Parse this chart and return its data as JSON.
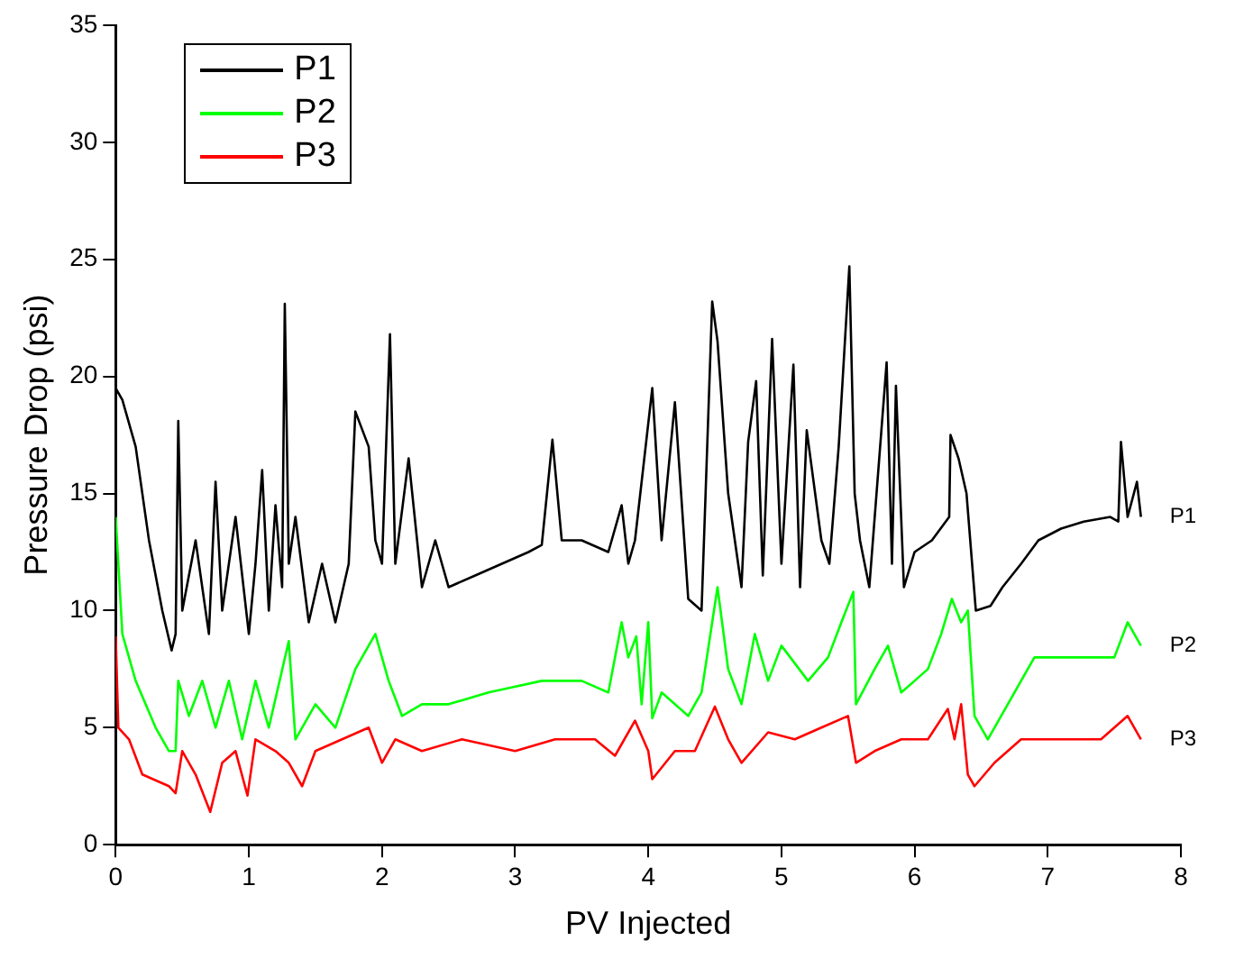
{
  "chart_data": {
    "type": "line",
    "xlabel": "PV Injected",
    "ylabel": "Pressure Drop (psi)",
    "xlim": [
      0,
      8
    ],
    "xticks": [
      0,
      1,
      2,
      3,
      4,
      5,
      6,
      7,
      8
    ],
    "ylim": [
      0,
      35
    ],
    "yticks": [
      0,
      5,
      10,
      15,
      20,
      25,
      30,
      35
    ],
    "legend": "top left",
    "marker": "none",
    "line_style": "solid",
    "annotations": [
      "P1",
      "P2",
      "P3"
    ],
    "series": [
      {
        "name": "P1",
        "color": "#000000",
        "x": [
          0,
          0.05,
          0.15,
          0.25,
          0.35,
          0.42,
          0.45,
          0.47,
          0.5,
          0.6,
          0.7,
          0.75,
          0.8,
          0.9,
          1.0,
          1.05,
          1.1,
          1.15,
          1.2,
          1.25,
          1.27,
          1.3,
          1.35,
          1.45,
          1.55,
          1.65,
          1.75,
          1.8,
          1.9,
          1.95,
          2.0,
          2.06,
          2.1,
          2.2,
          2.3,
          2.4,
          2.5,
          2.7,
          2.9,
          3.1,
          3.2,
          3.28,
          3.35,
          3.5,
          3.7,
          3.8,
          3.85,
          3.9,
          4.03,
          4.1,
          4.2,
          4.3,
          4.4,
          4.48,
          4.52,
          4.6,
          4.7,
          4.75,
          4.81,
          4.86,
          4.93,
          5.0,
          5.09,
          5.14,
          5.19,
          5.3,
          5.36,
          5.43,
          5.51,
          5.55,
          5.59,
          5.66,
          5.79,
          5.83,
          5.86,
          5.92,
          6.0,
          6.13,
          6.26,
          6.27,
          6.33,
          6.39,
          6.46,
          6.57,
          6.66,
          6.8,
          6.93,
          7.1,
          7.27,
          7.47,
          7.53,
          7.55,
          7.6,
          7.67,
          7.7
        ],
        "values": [
          19.5,
          19,
          17,
          13,
          10,
          8.3,
          9,
          18.1,
          10,
          13,
          9,
          15.5,
          10,
          14,
          9,
          12,
          16,
          10,
          14.5,
          11,
          23.1,
          12,
          14,
          9.5,
          12,
          9.5,
          12,
          18.5,
          17,
          13,
          12,
          21.8,
          12,
          16.5,
          11,
          13,
          11,
          11.5,
          12,
          12.5,
          12.8,
          17.3,
          13,
          13,
          12.5,
          14.5,
          12,
          13,
          19.5,
          13,
          18.9,
          10.5,
          10,
          23.2,
          21.5,
          15,
          11,
          17.2,
          19.8,
          11.5,
          21.6,
          12,
          20.5,
          11,
          17.7,
          13,
          12,
          17,
          24.7,
          15,
          13,
          11,
          20.6,
          12,
          19.6,
          11,
          12.5,
          13,
          14,
          17.5,
          16.5,
          15,
          10,
          10.2,
          11,
          12,
          13,
          13.5,
          13.8,
          14,
          13.8,
          17.2,
          14,
          15.5,
          14
        ]
      },
      {
        "name": "P2",
        "color": "#00ff00",
        "x": [
          0,
          0.05,
          0.15,
          0.3,
          0.4,
          0.45,
          0.47,
          0.55,
          0.65,
          0.75,
          0.85,
          0.95,
          1.05,
          1.15,
          1.3,
          1.35,
          1.5,
          1.65,
          1.8,
          1.95,
          2.05,
          2.15,
          2.3,
          2.5,
          2.8,
          3.2,
          3.5,
          3.7,
          3.8,
          3.85,
          3.91,
          3.95,
          4.0,
          4.03,
          4.1,
          4.3,
          4.4,
          4.52,
          4.6,
          4.7,
          4.8,
          4.9,
          5.0,
          5.2,
          5.35,
          5.45,
          5.54,
          5.56,
          5.7,
          5.8,
          5.9,
          6.1,
          6.2,
          6.28,
          6.35,
          6.4,
          6.45,
          6.55,
          6.7,
          6.9,
          7.2,
          7.5,
          7.6,
          7.7
        ],
        "values": [
          14,
          9,
          7,
          5,
          4,
          4,
          7,
          5.5,
          7,
          5,
          7,
          4.5,
          7,
          5,
          8.7,
          4.5,
          6,
          5,
          7.5,
          9,
          7,
          5.5,
          6,
          6,
          6.5,
          7,
          7,
          6.5,
          9.5,
          8,
          8.9,
          6,
          9.5,
          5.4,
          6.5,
          5.5,
          6.5,
          11,
          7.5,
          6,
          9,
          7,
          8.5,
          7,
          8,
          9.5,
          10.8,
          6,
          7.5,
          8.5,
          6.5,
          7.5,
          9,
          10.5,
          9.5,
          10,
          5.5,
          4.5,
          6,
          8,
          8,
          8,
          9.5,
          8.5
        ]
      },
      {
        "name": "P3",
        "color": "#ff0000",
        "x": [
          0,
          0.02,
          0.1,
          0.2,
          0.4,
          0.45,
          0.5,
          0.6,
          0.71,
          0.8,
          0.9,
          0.99,
          1.05,
          1.2,
          1.3,
          1.4,
          1.5,
          1.7,
          1.9,
          2.0,
          2.1,
          2.3,
          2.6,
          3.0,
          3.3,
          3.6,
          3.75,
          3.9,
          4.0,
          4.03,
          4.2,
          4.35,
          4.5,
          4.6,
          4.7,
          4.9,
          5.1,
          5.3,
          5.5,
          5.56,
          5.7,
          5.9,
          6.1,
          6.25,
          6.3,
          6.35,
          6.4,
          6.45,
          6.6,
          6.8,
          7.1,
          7.4,
          7.6,
          7.7
        ],
        "values": [
          8.9,
          5,
          4.5,
          3,
          2.5,
          2.2,
          4,
          3,
          1.4,
          3.5,
          4,
          2.1,
          4.5,
          4,
          3.5,
          2.5,
          4,
          4.5,
          5,
          3.5,
          4.5,
          4,
          4.5,
          4,
          4.5,
          4.5,
          3.8,
          5.3,
          4,
          2.8,
          4,
          4,
          5.9,
          4.5,
          3.5,
          4.8,
          4.5,
          5,
          5.5,
          3.5,
          4,
          4.5,
          4.5,
          5.8,
          4.5,
          6,
          3,
          2.5,
          3.5,
          4.5,
          4.5,
          4.5,
          5.5,
          4.5
        ]
      }
    ]
  }
}
